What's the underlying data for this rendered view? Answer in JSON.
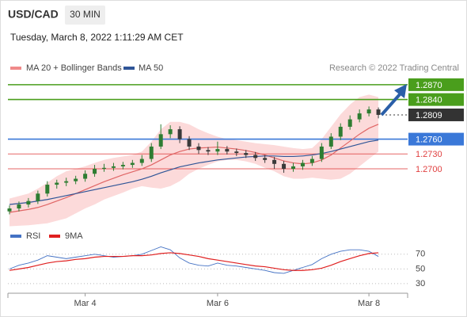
{
  "chart_data": [
    {
      "type": "candlestick",
      "title": "USD/CAD",
      "timeframe": "30 MIN",
      "subtitle": "Tuesday, March 8, 2022 1:11:29 AM CET",
      "source": "Research © 2022 Trading Central",
      "up_color": "#2e7d32",
      "down_color": "#3a3a3a",
      "ohlc": [
        [
          1.2614,
          1.2626,
          1.2608,
          1.262
        ],
        [
          1.262,
          1.2634,
          1.2614,
          1.2628
        ],
        [
          1.2628,
          1.2641,
          1.2622,
          1.2635
        ],
        [
          1.2635,
          1.2656,
          1.2629,
          1.265
        ],
        [
          1.265,
          1.2675,
          1.2644,
          1.2668
        ],
        [
          1.2668,
          1.2678,
          1.266,
          1.2672
        ],
        [
          1.2672,
          1.2682,
          1.2665,
          1.2675
        ],
        [
          1.2675,
          1.2686,
          1.2669,
          1.268
        ],
        [
          1.268,
          1.2697,
          1.2674,
          1.269
        ],
        [
          1.269,
          1.2708,
          1.2684,
          1.27
        ],
        [
          1.27,
          1.271,
          1.2694,
          1.2702
        ],
        [
          1.2702,
          1.2712,
          1.2696,
          1.2705
        ],
        [
          1.2705,
          1.2714,
          1.2699,
          1.2708
        ],
        [
          1.2708,
          1.2718,
          1.2702,
          1.2712
        ],
        [
          1.2712,
          1.2728,
          1.2706,
          1.272
        ],
        [
          1.272,
          1.2752,
          1.2714,
          1.2745
        ],
        [
          1.2745,
          1.279,
          1.274,
          1.277
        ],
        [
          1.277,
          1.2788,
          1.2762,
          1.278
        ],
        [
          1.278,
          1.2786,
          1.2752,
          1.276
        ],
        [
          1.276,
          1.2766,
          1.2738,
          1.2745
        ],
        [
          1.2745,
          1.2752,
          1.273,
          1.2738
        ],
        [
          1.2738,
          1.2744,
          1.2728,
          1.2735
        ],
        [
          1.2735,
          1.2755,
          1.2728,
          1.274
        ],
        [
          1.274,
          1.2746,
          1.2729,
          1.2735
        ],
        [
          1.2735,
          1.2741,
          1.2726,
          1.2732
        ],
        [
          1.2732,
          1.2738,
          1.2722,
          1.2728
        ],
        [
          1.2728,
          1.2734,
          1.2716,
          1.2722
        ],
        [
          1.2722,
          1.2728,
          1.2712,
          1.2718
        ],
        [
          1.2718,
          1.2724,
          1.27,
          1.271
        ],
        [
          1.271,
          1.2716,
          1.2692,
          1.27
        ],
        [
          1.27,
          1.2712,
          1.2694,
          1.2705
        ],
        [
          1.2705,
          1.2718,
          1.2698,
          1.2712
        ],
        [
          1.2712,
          1.2726,
          1.2706,
          1.272
        ],
        [
          1.272,
          1.2752,
          1.2714,
          1.2745
        ],
        [
          1.2745,
          1.2772,
          1.274,
          1.2765
        ],
        [
          1.2765,
          1.2792,
          1.2758,
          1.2785
        ],
        [
          1.2785,
          1.2808,
          1.2779,
          1.28
        ],
        [
          1.28,
          1.282,
          1.2794,
          1.2812
        ],
        [
          1.2812,
          1.2826,
          1.2806,
          1.282
        ],
        [
          1.282,
          1.2824,
          1.2802,
          1.2809
        ]
      ],
      "series": [
        {
          "name": "MA 20 + Bollinger Bands",
          "color": "#e06666",
          "band_color": "#fcdada",
          "values": [
            1.2612,
            1.2615,
            1.2618,
            1.2622,
            1.2628,
            1.2635,
            1.2642,
            1.265,
            1.2658,
            1.2666,
            1.2674,
            1.2681,
            1.2688,
            1.2694,
            1.27,
            1.2708,
            1.2718,
            1.2728,
            1.2735,
            1.274,
            1.2742,
            1.2743,
            1.2744,
            1.2742,
            1.274,
            1.2737,
            1.2733,
            1.2728,
            1.2722,
            1.2716,
            1.2712,
            1.271,
            1.2712,
            1.2718,
            1.2728,
            1.2742,
            1.2756,
            1.277,
            1.2782,
            1.279
          ],
          "upper": [
            1.264,
            1.2645,
            1.265,
            1.266,
            1.2672,
            1.2685,
            1.2695,
            1.27,
            1.2705,
            1.2712,
            1.2718,
            1.2722,
            1.2725,
            1.2728,
            1.2735,
            1.2755,
            1.278,
            1.2795,
            1.2795,
            1.279,
            1.278,
            1.2772,
            1.2765,
            1.276,
            1.2758,
            1.2755,
            1.2752,
            1.275,
            1.2748,
            1.2745,
            1.2742,
            1.274,
            1.2742,
            1.276,
            1.2785,
            1.281,
            1.283,
            1.2845,
            1.285,
            1.2845
          ],
          "lower": [
            1.2584,
            1.2585,
            1.2586,
            1.2588,
            1.259,
            1.2595,
            1.26,
            1.261,
            1.262,
            1.2628,
            1.2638,
            1.2645,
            1.2652,
            1.266,
            1.2665,
            1.2662,
            1.266,
            1.2665,
            1.2675,
            1.269,
            1.27,
            1.2708,
            1.2715,
            1.2718,
            1.2718,
            1.2715,
            1.271,
            1.2702,
            1.2695,
            1.2685,
            1.268,
            1.268,
            1.2682,
            1.268,
            1.2678,
            1.268,
            1.269,
            1.2705,
            1.272,
            1.2735
          ]
        },
        {
          "name": "MA 50",
          "color": "#2f5597",
          "values": [
            1.2628,
            1.263,
            1.2632,
            1.2635,
            1.2638,
            1.2642,
            1.2646,
            1.265,
            1.2654,
            1.2658,
            1.2662,
            1.2666,
            1.267,
            1.2674,
            1.2679,
            1.2685,
            1.2692,
            1.2698,
            1.2704,
            1.2708,
            1.2712,
            1.2715,
            1.2718,
            1.272,
            1.2722,
            1.2724,
            1.2725,
            1.2726,
            1.2726,
            1.2725,
            1.2725,
            1.2726,
            1.2728,
            1.2731,
            1.2735,
            1.274,
            1.2745,
            1.275,
            1.2755,
            1.2758
          ]
        }
      ],
      "levels": [
        {
          "value": 1.287,
          "label": "1.2870",
          "color": "#4a9e1c",
          "style": "box",
          "line": "solid"
        },
        {
          "value": 1.284,
          "label": "1.2840",
          "color": "#4a9e1c",
          "style": "box",
          "line": "solid"
        },
        {
          "value": 1.2809,
          "label": "1.2809",
          "color": "#333333",
          "style": "box",
          "line": "dotted"
        },
        {
          "value": 1.276,
          "label": "1.2760",
          "color": "#3a78d8",
          "style": "box",
          "line": "solid"
        },
        {
          "value": 1.273,
          "label": "1.2730",
          "color": "#e04040",
          "style": "text",
          "line": "thin"
        },
        {
          "value": 1.27,
          "label": "1.2700",
          "color": "#e04040",
          "style": "text",
          "line": "thin"
        }
      ],
      "ylim": [
        1.258,
        1.2889
      ]
    },
    {
      "type": "line",
      "categories": [
        null,
        null,
        null,
        null,
        null,
        null,
        null,
        null,
        "Mar 4",
        null,
        null,
        null,
        null,
        null,
        null,
        null,
        null,
        null,
        null,
        null,
        null,
        null,
        "Mar 6",
        null,
        null,
        null,
        null,
        null,
        null,
        null,
        null,
        null,
        null,
        null,
        null,
        null,
        null,
        null,
        "Mar 8",
        null
      ],
      "series": [
        {
          "name": "RSI",
          "color": "#4472c4",
          "values": [
            50,
            55,
            58,
            62,
            68,
            66,
            64,
            66,
            68,
            70,
            68,
            66,
            67,
            68,
            70,
            75,
            80,
            76,
            65,
            58,
            55,
            54,
            58,
            55,
            54,
            52,
            50,
            48,
            45,
            44,
            48,
            52,
            56,
            64,
            70,
            74,
            76,
            76,
            74,
            67
          ]
        },
        {
          "name": "9MA",
          "color": "#e02020",
          "values": [
            48,
            50,
            52,
            55,
            58,
            60,
            61,
            63,
            64,
            66,
            67,
            67,
            67,
            68,
            68,
            69,
            71,
            72,
            71,
            69,
            67,
            64,
            62,
            60,
            58,
            56,
            54,
            53,
            51,
            49,
            48,
            48,
            49,
            51,
            55,
            60,
            64,
            68,
            71,
            72
          ]
        }
      ],
      "ylim": [
        17,
        87
      ],
      "yticks": [
        30,
        50,
        70
      ],
      "grid": true
    }
  ]
}
